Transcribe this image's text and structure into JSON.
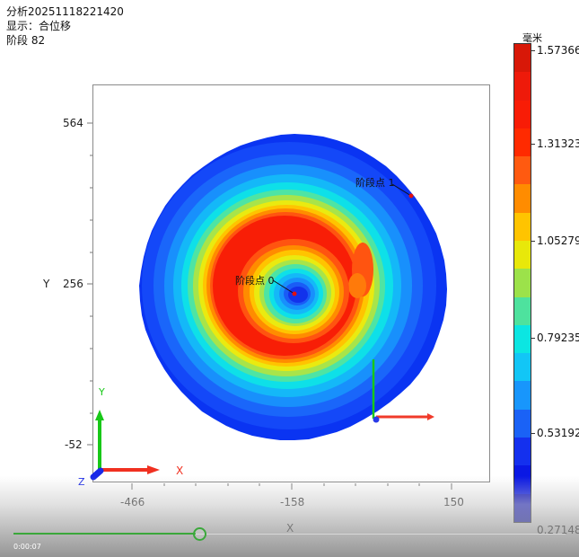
{
  "header": {
    "analysis_title": "分析20251118221420",
    "display_label": "显示：合位移",
    "stage_label": "阶段 82"
  },
  "chart_data": {
    "type": "heatmap",
    "title": "分析20251118221420",
    "subtitle": "显示：合位移 / 阶段 82",
    "xlabel": "X",
    "ylabel": "Y",
    "x_ticks": [
      -466,
      -158,
      150
    ],
    "y_ticks": [
      564,
      256,
      -52
    ],
    "grid": false,
    "description": "Circular disk contour plot of resultant displacement; low (blue) at center and outer edge, high (red) in an annular ring",
    "colorbar": {
      "title": "毫米",
      "min": 0.27148,
      "max": 1.57366,
      "tick_labels": [
        "1.57366",
        "1.31323",
        "1.05279",
        "0.79235",
        "0.53192",
        "0.27148"
      ],
      "position": "right"
    },
    "annotations": [
      {
        "label": "阶段点 0",
        "location": "disk center"
      },
      {
        "label": "阶段点 1",
        "location": "upper-right edge of disk"
      }
    ],
    "triad_labels": [
      "X",
      "Y",
      "Z"
    ]
  },
  "colorbar_bands": [
    "#d81808",
    "#ee1a0a",
    "#f81c06",
    "#ff2a00",
    "#ff5a10",
    "#ff8c00",
    "#ffc400",
    "#e8e80a",
    "#9ce24a",
    "#4ee29e",
    "#0ce6e2",
    "#12c6f6",
    "#1896fc",
    "#1a62f6",
    "#1430ee",
    "#0a18e4",
    "#0c10c0"
  ],
  "player": {
    "time": "0:00:07",
    "progress_percent": 33
  },
  "colors": {
    "red": "#ff1a00",
    "blue": "#1030f0",
    "axis_x": "#e82a1a",
    "axis_y": "#1ac81a",
    "axis_z": "#1a28e8",
    "progress": "#3aa83a"
  }
}
